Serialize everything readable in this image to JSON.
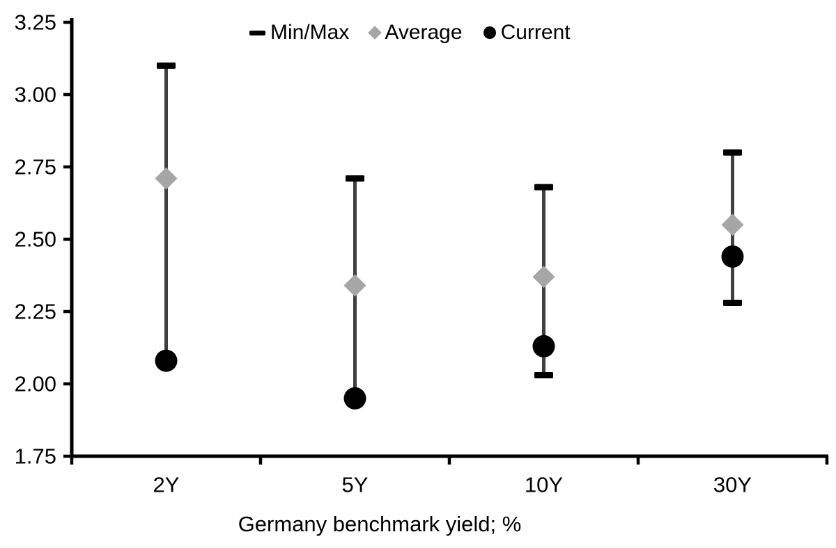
{
  "chart_data": {
    "type": "scatter",
    "subtype": "min-max-range-with-markers",
    "title": "",
    "xlabel": "Germany benchmark yield; %",
    "ylabel": "",
    "categories": [
      "2Y",
      "5Y",
      "10Y",
      "30Y"
    ],
    "series": [
      {
        "name": "Min/Max",
        "marker": "dash",
        "color": "#000000",
        "role": "range",
        "min": [
          2.08,
          1.95,
          2.03,
          2.28
        ],
        "max": [
          3.1,
          2.71,
          2.68,
          2.8
        ]
      },
      {
        "name": "Average",
        "marker": "diamond",
        "color": "#a6a6a6",
        "role": "points",
        "values": [
          2.71,
          2.34,
          2.37,
          2.55
        ]
      },
      {
        "name": "Current",
        "marker": "circle",
        "color": "#000000",
        "role": "points",
        "values": [
          2.08,
          1.95,
          2.13,
          2.44
        ]
      }
    ],
    "ylim": [
      1.75,
      3.25
    ],
    "ytick_step": 0.25,
    "y_ticks": [
      "3.25",
      "3.00",
      "2.75",
      "2.50",
      "2.25",
      "2.00",
      "1.75"
    ],
    "grid": false,
    "legend_position": "top-center",
    "colors": {
      "whisker": "#404040",
      "cap": "#000000",
      "axis": "#000000",
      "text": "#000000"
    }
  }
}
